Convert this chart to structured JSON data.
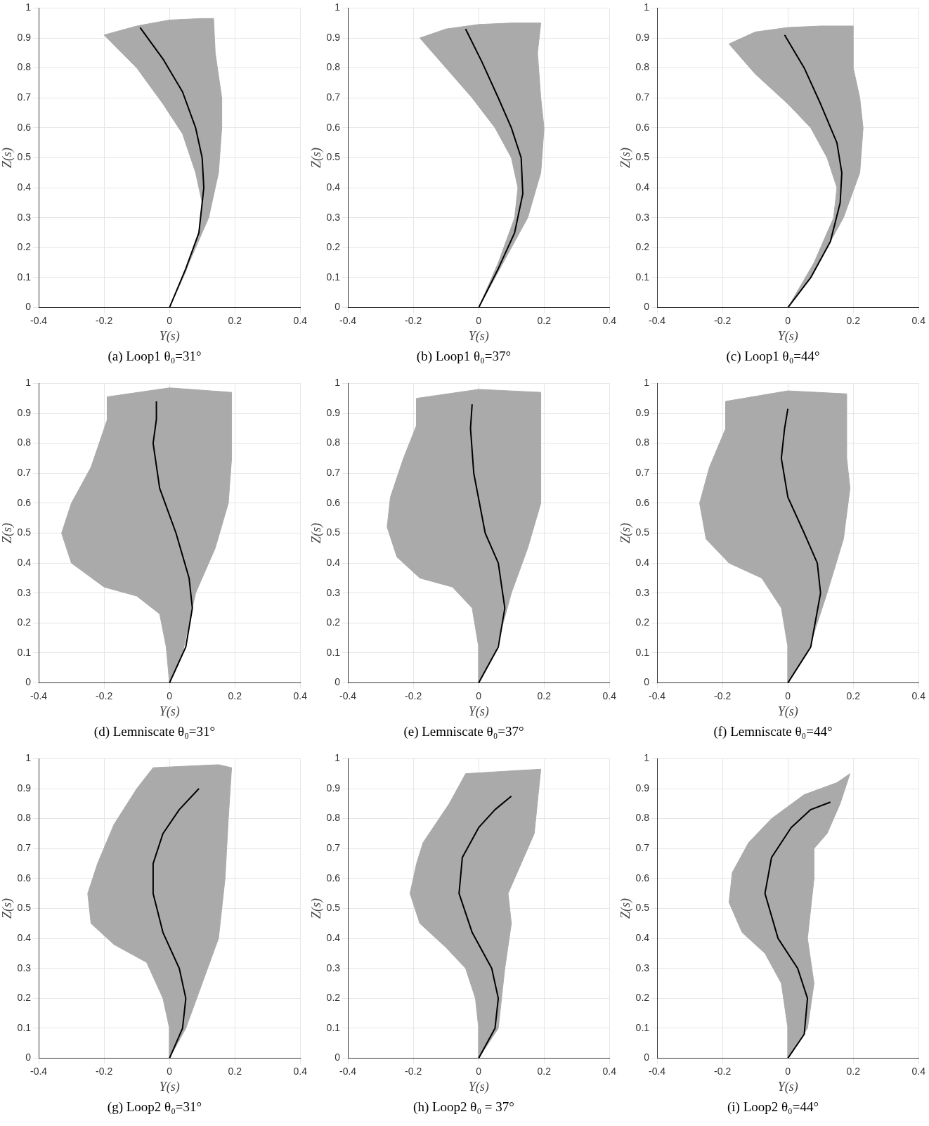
{
  "chart_data": [
    {
      "type": "area",
      "title": "(a) Loop1 θ₀=31°",
      "xlabel": "Y(s)",
      "ylabel": "Z(s)",
      "xlim": [
        -0.4,
        0.4
      ],
      "xticks": [
        -0.4,
        -0.2,
        0,
        0.2,
        0.4
      ],
      "ylim": [
        0,
        1
      ],
      "yticks": [
        0,
        0.1,
        0.2,
        0.3,
        0.4,
        0.5,
        0.6,
        0.7,
        0.8,
        0.9,
        1
      ],
      "grid": true,
      "series": [
        {
          "color": "#aaaaaa",
          "x": [
            0,
            0.06,
            0.12,
            0.15,
            0.16,
            0.16,
            0.14,
            0.135,
            0.1,
            0,
            -0.1,
            -0.2,
            -0.1,
            -0.02,
            0.04,
            0.08,
            0.1,
            0.09,
            0.05,
            0
          ],
          "values": [
            0,
            0.15,
            0.3,
            0.45,
            0.6,
            0.7,
            0.85,
            0.965,
            0.965,
            0.96,
            0.94,
            0.91,
            0.8,
            0.68,
            0.58,
            0.45,
            0.35,
            0.25,
            0.12,
            0
          ]
        },
        {
          "type": "line",
          "color": "#000000",
          "x": [
            0,
            0.05,
            0.09,
            0.105,
            0.1,
            0.08,
            0.04,
            -0.02,
            -0.09
          ],
          "values": [
            0,
            0.13,
            0.25,
            0.4,
            0.5,
            0.6,
            0.72,
            0.83,
            0.935
          ]
        }
      ]
    },
    {
      "type": "area",
      "title": "(b) Loop1 θ₀=37°",
      "xlabel": "Y(s)",
      "ylabel": "Z(s)",
      "xlim": [
        -0.4,
        0.4
      ],
      "xticks": [
        -0.4,
        -0.2,
        0,
        0.2,
        0.4
      ],
      "ylim": [
        0,
        1
      ],
      "yticks": [
        0,
        0.1,
        0.2,
        0.3,
        0.4,
        0.5,
        0.6,
        0.7,
        0.8,
        0.9,
        1
      ],
      "grid": true,
      "series": [
        {
          "color": "#aaaaaa",
          "x": [
            0,
            0.06,
            0.15,
            0.19,
            0.2,
            0.19,
            0.18,
            0.19,
            0.1,
            0,
            -0.1,
            -0.18,
            -0.1,
            -0.02,
            0.05,
            0.1,
            0.12,
            0.11,
            0.06,
            0
          ],
          "values": [
            0,
            0.12,
            0.3,
            0.45,
            0.6,
            0.7,
            0.85,
            0.95,
            0.95,
            0.945,
            0.93,
            0.9,
            0.8,
            0.7,
            0.6,
            0.5,
            0.4,
            0.3,
            0.15,
            0
          ]
        },
        {
          "type": "line",
          "color": "#000000",
          "x": [
            0,
            0.06,
            0.11,
            0.135,
            0.13,
            0.1,
            0.06,
            0.01,
            -0.04
          ],
          "values": [
            0,
            0.13,
            0.25,
            0.38,
            0.5,
            0.6,
            0.7,
            0.82,
            0.93
          ]
        }
      ]
    },
    {
      "type": "area",
      "title": "(c) Loop1 θ₀=44°",
      "xlabel": "Y(s)",
      "ylabel": "Z(s)",
      "xlim": [
        -0.4,
        0.4
      ],
      "xticks": [
        -0.4,
        -0.2,
        0,
        0.2,
        0.4
      ],
      "ylim": [
        0,
        1
      ],
      "yticks": [
        0,
        0.1,
        0.2,
        0.3,
        0.4,
        0.5,
        0.6,
        0.7,
        0.8,
        0.9,
        1
      ],
      "grid": true,
      "series": [
        {
          "color": "#aaaaaa",
          "x": [
            0,
            0.08,
            0.17,
            0.22,
            0.23,
            0.22,
            0.2,
            0.2,
            0.1,
            0,
            -0.1,
            -0.18,
            -0.1,
            0,
            0.07,
            0.12,
            0.15,
            0.14,
            0.08,
            0
          ],
          "values": [
            0,
            0.12,
            0.3,
            0.45,
            0.6,
            0.7,
            0.8,
            0.94,
            0.94,
            0.935,
            0.92,
            0.88,
            0.78,
            0.68,
            0.6,
            0.5,
            0.4,
            0.3,
            0.15,
            0
          ]
        },
        {
          "type": "line",
          "color": "#000000",
          "x": [
            0,
            0.07,
            0.13,
            0.16,
            0.165,
            0.15,
            0.1,
            0.05,
            -0.01
          ],
          "values": [
            0,
            0.1,
            0.22,
            0.35,
            0.45,
            0.55,
            0.68,
            0.8,
            0.91
          ]
        }
      ]
    },
    {
      "type": "area",
      "title": "(d) Lemniscate θ₀=31°",
      "xlabel": "Y(s)",
      "ylabel": "Z(s)",
      "xlim": [
        -0.4,
        0.4
      ],
      "xticks": [
        -0.4,
        -0.2,
        0,
        0.2,
        0.4
      ],
      "ylim": [
        0,
        1
      ],
      "yticks": [
        0,
        0.1,
        0.2,
        0.3,
        0.4,
        0.5,
        0.6,
        0.7,
        0.8,
        0.9,
        1
      ],
      "grid": true,
      "series": [
        {
          "color": "#aaaaaa",
          "x": [
            0,
            0.04,
            0.08,
            0.14,
            0.18,
            0.19,
            0.19,
            0,
            -0.19,
            -0.19,
            -0.24,
            -0.3,
            -0.33,
            -0.3,
            -0.2,
            -0.1,
            -0.03,
            -0.01,
            0
          ],
          "values": [
            0,
            0.1,
            0.3,
            0.45,
            0.6,
            0.75,
            0.97,
            0.985,
            0.955,
            0.88,
            0.72,
            0.6,
            0.5,
            0.4,
            0.32,
            0.29,
            0.23,
            0.12,
            0
          ]
        },
        {
          "type": "line",
          "color": "#000000",
          "x": [
            0,
            0.05,
            0.07,
            0.06,
            0.02,
            -0.03,
            -0.05,
            -0.04,
            -0.04
          ],
          "values": [
            0,
            0.12,
            0.25,
            0.35,
            0.5,
            0.65,
            0.8,
            0.88,
            0.94
          ]
        }
      ]
    },
    {
      "type": "area",
      "title": "(e) Lemniscate θ₀=37°",
      "xlabel": "Y(s)",
      "ylabel": "Z(s)",
      "xlim": [
        -0.4,
        0.4
      ],
      "xticks": [
        -0.4,
        -0.2,
        0,
        0.2,
        0.4
      ],
      "ylim": [
        0,
        1
      ],
      "yticks": [
        0,
        0.1,
        0.2,
        0.3,
        0.4,
        0.5,
        0.6,
        0.7,
        0.8,
        0.9,
        1
      ],
      "grid": true,
      "series": [
        {
          "color": "#aaaaaa",
          "x": [
            0,
            0.05,
            0.1,
            0.15,
            0.19,
            0.19,
            0,
            -0.19,
            -0.19,
            -0.23,
            -0.27,
            -0.28,
            -0.25,
            -0.18,
            -0.08,
            -0.02,
            0,
            0
          ],
          "values": [
            0,
            0.1,
            0.3,
            0.45,
            0.6,
            0.97,
            0.98,
            0.95,
            0.86,
            0.75,
            0.62,
            0.52,
            0.42,
            0.35,
            0.32,
            0.25,
            0.12,
            0
          ]
        },
        {
          "type": "line",
          "color": "#000000",
          "x": [
            0,
            0.06,
            0.08,
            0.06,
            0.02,
            -0.015,
            -0.025,
            -0.02
          ],
          "values": [
            0,
            0.12,
            0.25,
            0.4,
            0.5,
            0.7,
            0.85,
            0.93
          ]
        }
      ]
    },
    {
      "type": "area",
      "title": "(f) Lemniscate θ₀=44°",
      "xlabel": "Y(s)",
      "ylabel": "Z(s)",
      "xlim": [
        -0.4,
        0.4
      ],
      "xticks": [
        -0.4,
        -0.2,
        0,
        0.2,
        0.4
      ],
      "ylim": [
        0,
        1
      ],
      "yticks": [
        0,
        0.1,
        0.2,
        0.3,
        0.4,
        0.5,
        0.6,
        0.7,
        0.8,
        0.9,
        1
      ],
      "grid": true,
      "series": [
        {
          "color": "#aaaaaa",
          "x": [
            0,
            0.06,
            0.12,
            0.17,
            0.19,
            0.18,
            0.18,
            0,
            -0.19,
            -0.19,
            -0.24,
            -0.27,
            -0.25,
            -0.18,
            -0.08,
            -0.02,
            0,
            0
          ],
          "values": [
            0,
            0.1,
            0.3,
            0.48,
            0.65,
            0.75,
            0.965,
            0.975,
            0.94,
            0.85,
            0.72,
            0.6,
            0.48,
            0.4,
            0.35,
            0.25,
            0.12,
            0
          ]
        },
        {
          "type": "line",
          "color": "#000000",
          "x": [
            0,
            0.07,
            0.1,
            0.09,
            0.05,
            0,
            -0.02,
            -0.01,
            0
          ],
          "values": [
            0,
            0.12,
            0.3,
            0.4,
            0.5,
            0.62,
            0.75,
            0.85,
            0.915
          ]
        }
      ]
    },
    {
      "type": "area",
      "title": "(g) Loop2 θ₀=31°",
      "xlabel": "Y(s)",
      "ylabel": "Z(s)",
      "xlim": [
        -0.4,
        0.4
      ],
      "xticks": [
        -0.4,
        -0.2,
        0,
        0.2,
        0.4
      ],
      "ylim": [
        0,
        1
      ],
      "yticks": [
        0,
        0.1,
        0.2,
        0.3,
        0.4,
        0.5,
        0.6,
        0.7,
        0.8,
        0.9,
        1
      ],
      "grid": true,
      "series": [
        {
          "color": "#aaaaaa",
          "x": [
            0,
            0.05,
            0.1,
            0.15,
            0.17,
            0.18,
            0.19,
            0.15,
            -0.05,
            -0.1,
            -0.17,
            -0.22,
            -0.25,
            -0.24,
            -0.17,
            -0.07,
            -0.02,
            0,
            0
          ],
          "values": [
            0,
            0.1,
            0.25,
            0.4,
            0.6,
            0.8,
            0.97,
            0.98,
            0.97,
            0.9,
            0.78,
            0.65,
            0.55,
            0.45,
            0.38,
            0.32,
            0.2,
            0.1,
            0
          ]
        },
        {
          "type": "line",
          "color": "#000000",
          "x": [
            0,
            0.04,
            0.05,
            0.03,
            -0.02,
            -0.05,
            -0.05,
            -0.02,
            0.03,
            0.09
          ],
          "values": [
            0,
            0.1,
            0.2,
            0.3,
            0.42,
            0.55,
            0.65,
            0.75,
            0.83,
            0.9
          ]
        }
      ]
    },
    {
      "type": "area",
      "title": "(h) Loop2 θ₀ = 37°",
      "xlabel": "Y(s)",
      "ylabel": "Z(s)",
      "xlim": [
        -0.4,
        0.4
      ],
      "xticks": [
        -0.4,
        -0.2,
        0,
        0.2,
        0.4
      ],
      "ylim": [
        0,
        1
      ],
      "yticks": [
        0,
        0.1,
        0.2,
        0.3,
        0.4,
        0.5,
        0.6,
        0.7,
        0.8,
        0.9,
        1
      ],
      "grid": true,
      "series": [
        {
          "color": "#aaaaaa",
          "x": [
            0,
            0.06,
            0.08,
            0.1,
            0.09,
            0.13,
            0.17,
            0.19,
            0.11,
            -0.04,
            -0.09,
            -0.17,
            -0.19,
            -0.21,
            -0.18,
            -0.1,
            -0.04,
            -0.01,
            0,
            0
          ],
          "values": [
            0,
            0.1,
            0.3,
            0.45,
            0.55,
            0.65,
            0.75,
            0.965,
            0.96,
            0.95,
            0.85,
            0.72,
            0.65,
            0.55,
            0.45,
            0.37,
            0.3,
            0.2,
            0.1,
            0
          ]
        },
        {
          "type": "line",
          "color": "#000000",
          "x": [
            0,
            0.05,
            0.06,
            0.04,
            -0.02,
            -0.06,
            -0.05,
            0,
            0.05,
            0.1
          ],
          "values": [
            0,
            0.1,
            0.2,
            0.3,
            0.42,
            0.55,
            0.67,
            0.77,
            0.83,
            0.875
          ]
        }
      ]
    },
    {
      "type": "area",
      "title": "(i) Loop2 θ₀=44°",
      "xlabel": "Y(s)",
      "ylabel": "Z(s)",
      "xlim": [
        -0.4,
        0.4
      ],
      "xticks": [
        -0.4,
        -0.2,
        0,
        0.2,
        0.4
      ],
      "ylim": [
        0,
        1
      ],
      "yticks": [
        0,
        0.1,
        0.2,
        0.3,
        0.4,
        0.5,
        0.6,
        0.7,
        0.8,
        0.9,
        1
      ],
      "grid": true,
      "series": [
        {
          "color": "#aaaaaa",
          "x": [
            0,
            0.06,
            0.08,
            0.06,
            0.07,
            0.08,
            0.08,
            0.12,
            0.16,
            0.19,
            0.15,
            0.1,
            0.05,
            -0.05,
            -0.12,
            -0.17,
            -0.18,
            -0.14,
            -0.07,
            -0.02,
            0,
            0
          ],
          "values": [
            0,
            0.1,
            0.25,
            0.4,
            0.5,
            0.6,
            0.7,
            0.75,
            0.85,
            0.95,
            0.92,
            0.9,
            0.88,
            0.8,
            0.72,
            0.62,
            0.52,
            0.42,
            0.35,
            0.25,
            0.1,
            0
          ]
        },
        {
          "type": "line",
          "color": "#000000",
          "x": [
            0,
            0.05,
            0.06,
            0.03,
            -0.03,
            -0.07,
            -0.05,
            0.01,
            0.07,
            0.13
          ],
          "values": [
            0,
            0.08,
            0.2,
            0.3,
            0.4,
            0.55,
            0.67,
            0.77,
            0.83,
            0.855
          ]
        }
      ]
    }
  ]
}
